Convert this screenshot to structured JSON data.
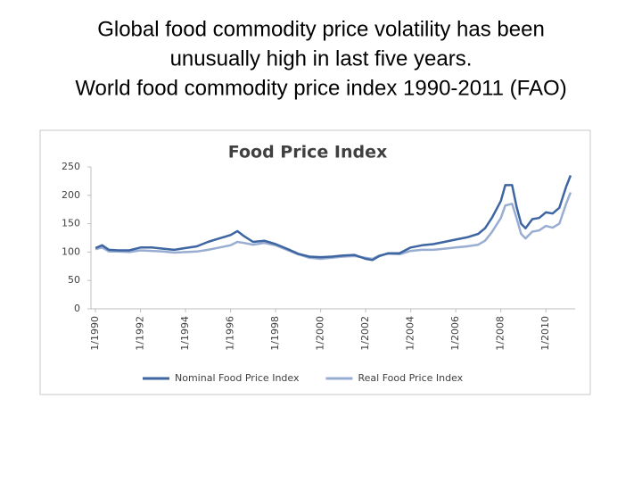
{
  "slide": {
    "title_lines": [
      "Global food commodity price volatility has been",
      "unusually high in last five years.",
      "World food commodity price index 1990-2011 (FAO)"
    ]
  },
  "chart_data": {
    "type": "line",
    "title": "Food Price Index",
    "x": [
      1990,
      1990.3,
      1990.6,
      1991,
      1991.5,
      1992,
      1992.5,
      1993,
      1993.5,
      1994,
      1994.5,
      1995,
      1995.5,
      1996,
      1996.3,
      1996.6,
      1997,
      1997.5,
      1998,
      1998.5,
      1999,
      1999.5,
      2000,
      2000.5,
      2001,
      2001.5,
      2002,
      2002.3,
      2002.6,
      2003,
      2003.5,
      2004,
      2004.5,
      2005,
      2005.5,
      2006,
      2006.5,
      2007,
      2007.3,
      2007.6,
      2008,
      2008.2,
      2008.5,
      2008.7,
      2008.9,
      2009.1,
      2009.4,
      2009.7,
      2010,
      2010.3,
      2010.6,
      2010.9,
      2011.1
    ],
    "series": [
      {
        "name": "Nominal Food Price Index",
        "color": "#3d65a1",
        "values": [
          107,
          112,
          104,
          103,
          103,
          108,
          108,
          106,
          104,
          107,
          110,
          118,
          124,
          130,
          137,
          128,
          118,
          120,
          114,
          106,
          97,
          92,
          91,
          92,
          94,
          95,
          88,
          86,
          93,
          98,
          98,
          108,
          112,
          114,
          118,
          122,
          126,
          132,
          142,
          160,
          190,
          218,
          218,
          180,
          150,
          142,
          158,
          160,
          170,
          168,
          178,
          215,
          235
        ]
      },
      {
        "name": "Real Food Price Index",
        "color": "#98add1",
        "values": [
          105,
          108,
          101,
          101,
          100,
          103,
          102,
          101,
          99,
          100,
          101,
          104,
          108,
          112,
          118,
          116,
          113,
          116,
          112,
          104,
          96,
          90,
          88,
          90,
          92,
          93,
          90,
          88,
          94,
          97,
          96,
          102,
          104,
          104,
          106,
          108,
          110,
          113,
          120,
          135,
          160,
          182,
          185,
          160,
          132,
          124,
          136,
          138,
          146,
          143,
          150,
          185,
          205
        ]
      }
    ],
    "xlim": [
      1989.8,
      2011.3
    ],
    "xticks": [
      {
        "value": 1990,
        "label": "1/1990"
      },
      {
        "value": 1992,
        "label": "1/1992"
      },
      {
        "value": 1994,
        "label": "1/1994"
      },
      {
        "value": 1996,
        "label": "1/1996"
      },
      {
        "value": 1998,
        "label": "1/1998"
      },
      {
        "value": 2000,
        "label": "1/2000"
      },
      {
        "value": 2002,
        "label": "1/2002"
      },
      {
        "value": 2004,
        "label": "1/2004"
      },
      {
        "value": 2006,
        "label": "1/2006"
      },
      {
        "value": 2008,
        "label": "1/2008"
      },
      {
        "value": 2010,
        "label": "1/2010"
      }
    ],
    "ylim": [
      0,
      250
    ],
    "yticks": [
      0,
      50,
      100,
      150,
      200,
      250
    ],
    "grid": false,
    "legend": "bottom"
  }
}
